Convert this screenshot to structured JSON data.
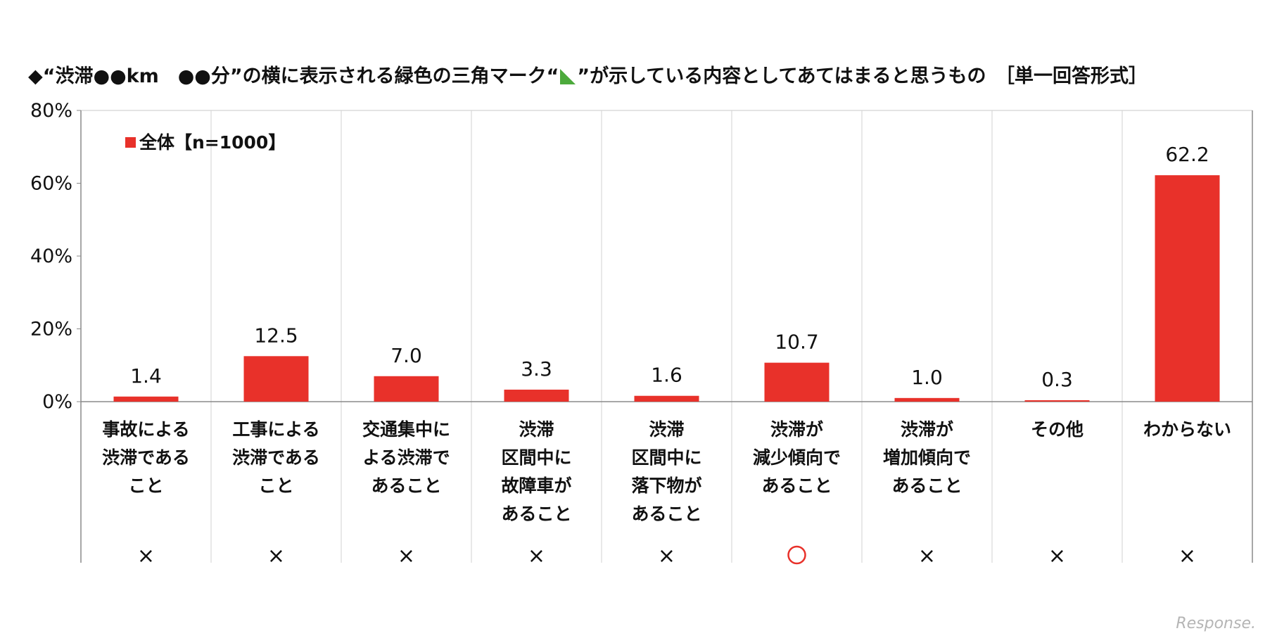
{
  "title": {
    "before": "◆“渋滞●●km　●●分”の横に表示される緑色の三角マーク“",
    "after": "”が示している内容としてあてはまると思うもの　［単一回答形式］"
  },
  "chart_data": {
    "type": "bar",
    "title": "◆“渋滞●●km　●●分”の横に表示される緑色の三角マーク“◣”が示している内容としてあてはまると思うもの　［単一回答形式］",
    "series": [
      {
        "name": "全体【n=1000】",
        "color": "#e8312a",
        "values": [
          1.4,
          12.5,
          7.0,
          3.3,
          1.6,
          10.7,
          1.0,
          0.3,
          62.2
        ]
      }
    ],
    "value_labels": [
      "1.4",
      "12.5",
      "7.0",
      "3.3",
      "1.6",
      "10.7",
      "1.0",
      "0.3",
      "62.2"
    ],
    "categories": [
      [
        "事故による",
        "渋滞である",
        "こと"
      ],
      [
        "工事による",
        "渋滞である",
        "こと"
      ],
      [
        "交通集中に",
        "よる渋滞で",
        "あること"
      ],
      [
        "渋滞",
        "区間中に",
        "故障車が",
        "あること"
      ],
      [
        "渋滞",
        "区間中に",
        "落下物が",
        "あること"
      ],
      [
        "渋滞が",
        "減少傾向で",
        "あること"
      ],
      [
        "渋滞が",
        "増加傾向で",
        "あること"
      ],
      [
        "その他"
      ],
      [
        "わからない"
      ]
    ],
    "correctness_marks": [
      "×",
      "×",
      "×",
      "×",
      "×",
      "○",
      "×",
      "×",
      "×"
    ],
    "ylim": [
      0,
      80
    ],
    "yticks": [
      0,
      20,
      40,
      60,
      80
    ],
    "ytick_labels": [
      "0%",
      "20%",
      "40%",
      "60%",
      "80%"
    ],
    "legend_position": "top-left",
    "xlabel": "",
    "ylabel": ""
  },
  "watermark": "Response."
}
